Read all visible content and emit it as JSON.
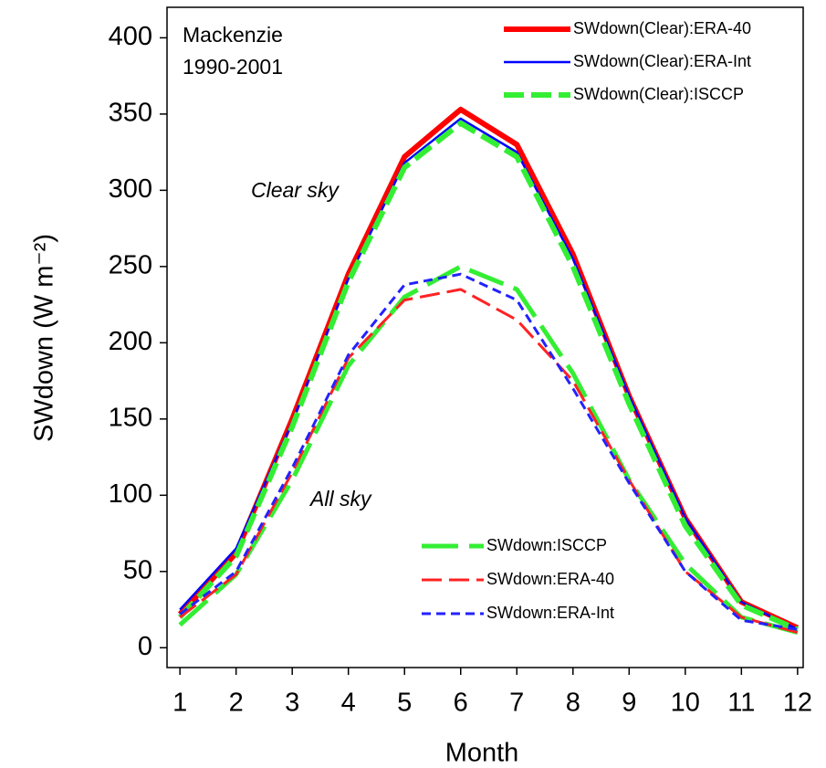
{
  "chart_data": {
    "type": "line",
    "xlabel": "Month",
    "ylabel": "SWdown (W m⁻²)",
    "annotations": [
      "Mackenzie",
      "1990-2001",
      "Clear sky",
      "All sky"
    ],
    "x": [
      1,
      2,
      3,
      4,
      5,
      6,
      7,
      8,
      9,
      10,
      11,
      12
    ],
    "xlim": [
      0.77,
      12.1
    ],
    "xticks": [
      1,
      2,
      3,
      4,
      5,
      6,
      7,
      8,
      9,
      10,
      11,
      12
    ],
    "ylim": [
      -13,
      420
    ],
    "yticks": [
      0,
      50,
      100,
      150,
      200,
      250,
      300,
      350,
      400
    ],
    "grid": false,
    "series": [
      {
        "name": "SWdown(Clear):ERA-40",
        "color": "#ff0000",
        "linewidth": 6,
        "linestyle": "solid",
        "legend": "upper right",
        "values": [
          22,
          62,
          150,
          245,
          322,
          353,
          330,
          258,
          165,
          85,
          30,
          13
        ]
      },
      {
        "name": "SWdown(Clear):ERA-Int",
        "color": "#0000ff",
        "linewidth": 2.5,
        "linestyle": "solid",
        "legend": "upper right",
        "values": [
          25,
          65,
          148,
          242,
          318,
          347,
          325,
          255,
          165,
          85,
          30,
          12
        ]
      },
      {
        "name": "SWdown(Clear):ISCCP",
        "color": "#33ee33",
        "linewidth": 6,
        "linestyle": "dashed",
        "legend": "upper right",
        "values": [
          20,
          60,
          145,
          240,
          315,
          344,
          322,
          250,
          160,
          80,
          28,
          12
        ]
      },
      {
        "name": "SWdown:ISCCP",
        "color": "#33ee33",
        "linewidth": 5,
        "linestyle": "longdash",
        "legend": "lower right",
        "values": [
          15,
          48,
          110,
          185,
          230,
          250,
          235,
          180,
          110,
          55,
          20,
          10
        ]
      },
      {
        "name": "SWdown:ERA-40",
        "color": "#ff2222",
        "linewidth": 3,
        "linestyle": "dashed",
        "legend": "lower right",
        "values": [
          20,
          48,
          115,
          190,
          228,
          235,
          215,
          175,
          110,
          50,
          20,
          10
        ]
      },
      {
        "name": "SWdown:ERA-Int",
        "color": "#2222ff",
        "linewidth": 3,
        "linestyle": "shortdash",
        "legend": "lower right",
        "values": [
          22,
          50,
          118,
          192,
          238,
          245,
          228,
          170,
          108,
          50,
          18,
          12
        ]
      }
    ]
  }
}
